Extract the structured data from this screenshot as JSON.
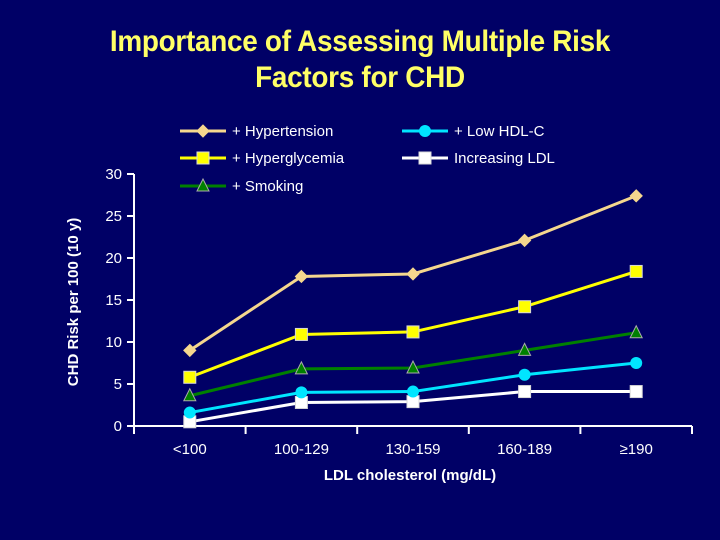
{
  "slide": {
    "title_line1": "Importance of Assessing Multiple Risk",
    "title_line2": "Factors for CHD"
  },
  "chart_data": {
    "type": "line",
    "title": "Importance of Assessing Multiple Risk Factors for CHD",
    "xlabel": "LDL cholesterol (mg/dL)",
    "ylabel": "CHD Risk per 100 (10 y)",
    "categories": [
      "<100",
      "100-129",
      "130-159",
      "160-189",
      "≥190"
    ],
    "ylim": [
      0,
      30
    ],
    "yticks": [
      0,
      5,
      10,
      15,
      20,
      25,
      30
    ],
    "grid": false,
    "legend": "top",
    "series": [
      {
        "name": "+ Hypertension",
        "color": "#f5d78e",
        "marker": "diamond",
        "values": [
          9.0,
          17.8,
          18.1,
          22.1,
          27.4
        ]
      },
      {
        "name": "+ Hyperglycemia",
        "color": "#ffff00",
        "marker": "square",
        "values": [
          5.8,
          10.9,
          11.2,
          14.2,
          18.4
        ]
      },
      {
        "name": "+ Smoking",
        "color": "#008000",
        "marker": "triangle",
        "values": [
          3.6,
          6.8,
          6.9,
          9.0,
          11.1
        ]
      },
      {
        "name": "+ Low HDL-C",
        "color": "#00e5ff",
        "marker": "circle",
        "values": [
          1.6,
          4.0,
          4.1,
          6.1,
          7.5
        ]
      },
      {
        "name": "Increasing LDL",
        "color": "#ffffff",
        "marker": "square",
        "values": [
          0.5,
          2.8,
          2.9,
          4.1,
          4.1
        ]
      }
    ]
  }
}
